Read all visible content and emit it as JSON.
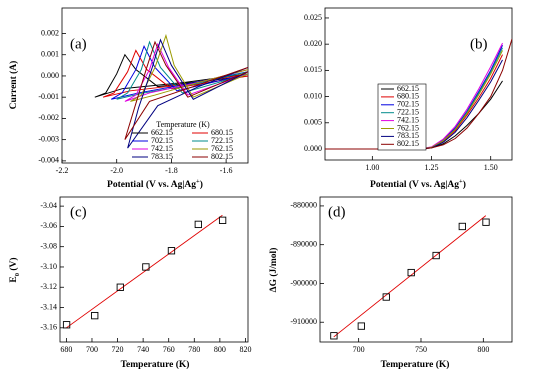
{
  "chart_data": [
    {
      "type": "line",
      "panel_label": "(a)",
      "xlabel": "Potential (V vs. Ag|Ag",
      "xlabel_sup": "+",
      "xlabel_end": ")",
      "ylabel": "Current (A)",
      "xlim": [
        -2.2,
        -1.52
      ],
      "ylim": [
        -0.0041,
        0.0032
      ],
      "xticks": [
        -2.2,
        {
          "value": -2,
          "label": "-2.0"
        },
        -1.8,
        -1.6
      ],
      "yticks": [
        -0.004,
        -0.003,
        -0.002,
        -0.001,
        {
          "value": 0,
          "label": "0.000"
        },
        0.001,
        0.002
      ],
      "legend_title": "Temperature (K)",
      "legend": "bottom",
      "series": [
        {
          "name": "662.15",
          "color": "#000000",
          "x": [
            -1.52,
            -1.75,
            -1.98,
            -2.08,
            -2.04,
            -2.0,
            -1.97,
            -1.93,
            -1.85,
            -1.52
          ],
          "values": [
            0.0001,
            -0.0003,
            -0.0006,
            -0.001,
            -0.0008,
            0.0001,
            0.001,
            0.0003,
            -0.0005,
            0
          ]
        },
        {
          "name": "680.15",
          "color": "#e00000",
          "x": [
            -1.52,
            -1.75,
            -1.95,
            -2.05,
            -2.01,
            -1.96,
            -1.93,
            -1.89,
            -1.8,
            -1.52
          ],
          "values": [
            0.0001,
            -0.0004,
            -0.0007,
            -0.001,
            -0.0008,
            0.0002,
            0.0012,
            0.0003,
            -0.0006,
            0
          ]
        },
        {
          "name": "702.15",
          "color": "#0000e0",
          "x": [
            -1.52,
            -1.75,
            -1.92,
            -2.02,
            -1.98,
            -1.93,
            -1.9,
            -1.86,
            -1.78,
            -1.52
          ],
          "values": [
            0.0002,
            -0.0004,
            -0.0008,
            -0.0011,
            -0.0008,
            0.0003,
            0.0014,
            0.0004,
            -0.0007,
            0.0001
          ]
        },
        {
          "name": "722.15",
          "color": "#008b8b",
          "x": [
            -1.52,
            -1.72,
            -1.9,
            -2.0,
            -1.96,
            -1.91,
            -1.88,
            -1.84,
            -1.76,
            -1.52
          ],
          "values": [
            0.0002,
            -0.0004,
            -0.0008,
            -0.0011,
            -0.0008,
            0.0003,
            0.0016,
            0.0004,
            -0.0008,
            0.0001
          ]
        },
        {
          "name": "742.15",
          "color": "#e000e0",
          "x": [
            -1.52,
            -1.7,
            -1.88,
            -1.97,
            -1.93,
            -1.88,
            -1.85,
            -1.81,
            -1.74,
            -1.52
          ],
          "values": [
            0.0003,
            -0.0003,
            -0.0008,
            -0.0012,
            -0.0009,
            0.0003,
            0.0015,
            0.0004,
            -0.0009,
            0.0001
          ]
        },
        {
          "name": "762.15",
          "color": "#9a9a00",
          "x": [
            -1.52,
            -1.7,
            -1.86,
            -1.95,
            -1.91,
            -1.86,
            -1.82,
            -1.79,
            -1.72,
            -1.52
          ],
          "values": [
            0.0003,
            -0.0003,
            -0.0009,
            -0.0012,
            -0.0009,
            0.0004,
            0.0019,
            0.0005,
            -0.001,
            0.0001
          ]
        },
        {
          "name": "783.15",
          "color": "#000080",
          "x": [
            -1.52,
            -1.7,
            -1.85,
            -1.96,
            -1.92,
            -1.87,
            -1.84,
            -1.8,
            -1.72,
            -1.52
          ],
          "values": [
            0.0004,
            -0.0005,
            -0.0014,
            -0.0034,
            -0.0015,
            0.0004,
            0.0017,
            0.0005,
            -0.0011,
            0.0002
          ]
        },
        {
          "name": "802.15",
          "color": "#8b0000",
          "x": [
            -1.52,
            -1.72,
            -1.88,
            -1.97,
            -1.93,
            -1.89,
            -1.86,
            -1.82,
            -1.74,
            -1.52
          ],
          "values": [
            0.0004,
            -0.0005,
            -0.0012,
            -0.003,
            -0.0013,
            0.0004,
            0.0016,
            0.0005,
            -0.001,
            0.0002
          ]
        }
      ]
    },
    {
      "type": "line",
      "panel_label": "(b)",
      "xlabel": "Potential (V vs. Ag|Ag",
      "xlabel_sup": "+",
      "xlabel_end": ")",
      "xlim": [
        0.8,
        1.59
      ],
      "ylim": [
        -0.0021,
        0.0269
      ],
      "xticks": [
        {
          "value": 1,
          "label": "1.00"
        },
        1.25,
        {
          "value": 1.5,
          "label": "1.50"
        }
      ],
      "yticks": [
        {
          "value": 0,
          "label": "0.000"
        },
        0.005,
        {
          "value": 0.01,
          "label": "0.010"
        },
        0.015,
        {
          "value": 0.02,
          "label": "0.020"
        },
        0.025
      ],
      "legend": "center",
      "x": [
        0.8,
        1.2,
        1.25,
        1.3,
        1.35,
        1.4,
        1.45,
        1.5,
        1.55,
        1.59
      ],
      "series": [
        {
          "name": "662.15",
          "color": "#000000",
          "values": [
            0,
            0,
            0.0002,
            0.001,
            0.0025,
            0.0045,
            0.0068,
            0.0095,
            0.013,
            null
          ]
        },
        {
          "name": "680.15",
          "color": "#e00000",
          "values": [
            0,
            0,
            0.0003,
            0.0015,
            0.0035,
            0.0065,
            0.0098,
            0.0135,
            0.018,
            null
          ]
        },
        {
          "name": "702.15",
          "color": "#0000e0",
          "values": [
            0,
            0,
            0.0003,
            0.0017,
            0.004,
            0.0072,
            0.011,
            0.015,
            0.0198,
            null
          ]
        },
        {
          "name": "722.15",
          "color": "#008b8b",
          "values": [
            0,
            0,
            0.0003,
            0.0016,
            0.0038,
            0.007,
            0.0107,
            0.0147,
            0.0193,
            null
          ]
        },
        {
          "name": "742.15",
          "color": "#e000e0",
          "values": [
            0,
            0,
            0.0004,
            0.0019,
            0.0043,
            0.0076,
            0.0115,
            0.0157,
            0.0202,
            null
          ]
        },
        {
          "name": "762.15",
          "color": "#9a9a00",
          "values": [
            0,
            0,
            0.0003,
            0.0016,
            0.0037,
            0.0068,
            0.0104,
            0.0143,
            0.0188,
            null
          ]
        },
        {
          "name": "783.15",
          "color": "#000080",
          "values": [
            0,
            0,
            0.0002,
            0.0013,
            0.0032,
            0.006,
            0.0093,
            0.0128,
            0.017,
            null
          ]
        },
        {
          "name": "802.15",
          "color": "#8b0000",
          "values": [
            0,
            0,
            0.0002,
            0.0008,
            0.002,
            0.004,
            0.0068,
            0.01,
            0.015,
            0.021
          ]
        }
      ]
    },
    {
      "type": "scatter",
      "panel_label": "(c)",
      "xlabel": "Temperature (K)",
      "ylabel": "E",
      "ylabel_sub": "0",
      "ylabel_end": " (V)",
      "xlim": [
        675,
        822
      ],
      "ylim": [
        -3.174,
        -3.031
      ],
      "xticks": [
        680,
        700,
        720,
        740,
        760,
        780,
        800,
        820
      ],
      "yticks": [
        -3.16,
        -3.14,
        -3.12,
        {
          "value": -3.1,
          "label": "-3.10"
        },
        -3.08,
        -3.06,
        -3.04
      ],
      "points": {
        "color": "#000000",
        "x": [
          680.15,
          702.15,
          722.15,
          742.15,
          762.15,
          783.15,
          802.15
        ],
        "values": [
          -3.157,
          -3.148,
          -3.12,
          -3.1,
          -3.084,
          -3.058,
          -3.054
        ]
      },
      "fit": {
        "color": "#e00000",
        "x": [
          680,
          802
        ],
        "values": [
          -3.16,
          -3.049
        ]
      }
    },
    {
      "type": "scatter",
      "panel_label": "(d)",
      "xlabel": "Temperature (K)",
      "ylabel": "ΔG (J/mol)",
      "xlim": [
        669,
        823
      ],
      "ylim": [
        -915100,
        -877700
      ],
      "xticks": [
        700,
        750,
        800
      ],
      "yticks": [
        -910000,
        -900000,
        -890000,
        -880000
      ],
      "points": {
        "color": "#000000",
        "x": [
          680.15,
          702.15,
          722.15,
          742.15,
          762.15,
          783.15,
          802.15
        ],
        "values": [
          -913500,
          -911000,
          -903500,
          -897200,
          -892800,
          -885300,
          -884200
        ]
      },
      "fit": {
        "color": "#e00000",
        "x": [
          680,
          802
        ],
        "values": [
          -913800,
          -882500
        ]
      }
    }
  ]
}
